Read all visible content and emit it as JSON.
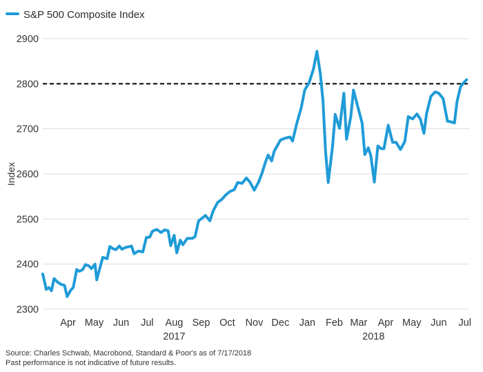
{
  "chart_data": {
    "type": "line",
    "title": "",
    "legend": {
      "position": "top-left",
      "entries": [
        {
          "name": "S&P 500 Composite Index",
          "color": "#1f9bd7"
        }
      ]
    },
    "ylabel": "Index",
    "xlabel": "",
    "ylim": [
      2300,
      2900
    ],
    "yticks": [
      2300,
      2400,
      2500,
      2600,
      2700,
      2800,
      2900
    ],
    "grid": "horizontal",
    "xlim": [
      "2017-03-17",
      "2018-07-20"
    ],
    "month_ticks": [
      {
        "label": "Apr",
        "date": "2017-04-15"
      },
      {
        "label": "May",
        "date": "2017-05-15"
      },
      {
        "label": "Jun",
        "date": "2017-06-15"
      },
      {
        "label": "Jul",
        "date": "2017-07-15"
      },
      {
        "label": "Aug",
        "date": "2017-08-15"
      },
      {
        "label": "Sep",
        "date": "2017-09-15"
      },
      {
        "label": "Oct",
        "date": "2017-10-15"
      },
      {
        "label": "Nov",
        "date": "2017-11-15"
      },
      {
        "label": "Dec",
        "date": "2017-12-15"
      },
      {
        "label": "Jan",
        "date": "2018-01-15"
      },
      {
        "label": "Feb",
        "date": "2018-02-15"
      },
      {
        "label": "Mar",
        "date": "2018-03-15"
      },
      {
        "label": "Apr",
        "date": "2018-04-15"
      },
      {
        "label": "May",
        "date": "2018-05-15"
      },
      {
        "label": "Jun",
        "date": "2018-06-15"
      },
      {
        "label": "Jul",
        "date": "2018-07-15"
      }
    ],
    "year_labels": [
      {
        "label": "2017",
        "date": "2017-08-15"
      },
      {
        "label": "2018",
        "date": "2018-04-01"
      }
    ],
    "reference_line": {
      "y": 2800,
      "style": "dashed",
      "color": "#000000"
    },
    "series": [
      {
        "name": "S&P 500 Composite Index",
        "color": "#1f9bd7",
        "x": [
          "2017-03-17",
          "2017-03-21",
          "2017-03-24",
          "2017-03-27",
          "2017-03-30",
          "2017-04-03",
          "2017-04-07",
          "2017-04-11",
          "2017-04-14",
          "2017-04-18",
          "2017-04-21",
          "2017-04-25",
          "2017-04-28",
          "2017-05-02",
          "2017-05-05",
          "2017-05-09",
          "2017-05-12",
          "2017-05-16",
          "2017-05-18",
          "2017-05-22",
          "2017-05-25",
          "2017-05-30",
          "2017-06-02",
          "2017-06-06",
          "2017-06-09",
          "2017-06-13",
          "2017-06-16",
          "2017-06-20",
          "2017-06-23",
          "2017-06-27",
          "2017-06-30",
          "2017-07-05",
          "2017-07-10",
          "2017-07-14",
          "2017-07-18",
          "2017-07-21",
          "2017-07-26",
          "2017-07-31",
          "2017-08-04",
          "2017-08-08",
          "2017-08-11",
          "2017-08-15",
          "2017-08-18",
          "2017-08-22",
          "2017-08-25",
          "2017-08-30",
          "2017-09-05",
          "2017-09-08",
          "2017-09-12",
          "2017-09-15",
          "2017-09-20",
          "2017-09-25",
          "2017-09-29",
          "2017-10-04",
          "2017-10-09",
          "2017-10-13",
          "2017-10-18",
          "2017-10-23",
          "2017-10-27",
          "2017-11-01",
          "2017-11-06",
          "2017-11-10",
          "2017-11-15",
          "2017-11-20",
          "2017-11-24",
          "2017-11-28",
          "2017-12-01",
          "2017-12-05",
          "2017-12-08",
          "2017-12-12",
          "2017-12-15",
          "2017-12-20",
          "2017-12-26",
          "2017-12-29",
          "2018-01-03",
          "2018-01-08",
          "2018-01-12",
          "2018-01-17",
          "2018-01-22",
          "2018-01-26",
          "2018-01-30",
          "2018-02-02",
          "2018-02-05",
          "2018-02-08",
          "2018-02-13",
          "2018-02-16",
          "2018-02-21",
          "2018-02-26",
          "2018-03-01",
          "2018-03-06",
          "2018-03-09",
          "2018-03-14",
          "2018-03-19",
          "2018-03-22",
          "2018-03-26",
          "2018-03-29",
          "2018-04-02",
          "2018-04-06",
          "2018-04-10",
          "2018-04-13",
          "2018-04-18",
          "2018-04-23",
          "2018-04-27",
          "2018-05-02",
          "2018-05-07",
          "2018-05-11",
          "2018-05-16",
          "2018-05-21",
          "2018-05-25",
          "2018-05-29",
          "2018-06-01",
          "2018-06-06",
          "2018-06-11",
          "2018-06-15",
          "2018-06-20",
          "2018-06-25",
          "2018-06-28",
          "2018-07-03",
          "2018-07-06",
          "2018-07-10",
          "2018-07-13",
          "2018-07-17"
        ],
        "values": [
          2378,
          2344,
          2348,
          2341,
          2368,
          2360,
          2355,
          2353,
          2328,
          2342,
          2348,
          2388,
          2384,
          2388,
          2399,
          2396,
          2390,
          2400,
          2365,
          2394,
          2415,
          2412,
          2439,
          2434,
          2432,
          2440,
          2433,
          2437,
          2438,
          2440,
          2423,
          2429,
          2427,
          2459,
          2460,
          2473,
          2477,
          2470,
          2476,
          2474,
          2441,
          2464,
          2425,
          2453,
          2443,
          2457,
          2457,
          2461,
          2496,
          2500,
          2508,
          2496,
          2519,
          2537,
          2544,
          2553,
          2561,
          2565,
          2581,
          2579,
          2591,
          2582,
          2564,
          2582,
          2602,
          2627,
          2642,
          2629,
          2651,
          2664,
          2675,
          2679,
          2682,
          2673,
          2713,
          2747,
          2786,
          2802,
          2832,
          2872,
          2822,
          2762,
          2648,
          2581,
          2662,
          2732,
          2701,
          2779,
          2677,
          2728,
          2786,
          2749,
          2712,
          2643,
          2658,
          2640,
          2582,
          2662,
          2656,
          2656,
          2708,
          2670,
          2670,
          2654,
          2672,
          2727,
          2722,
          2733,
          2721,
          2690,
          2734,
          2772,
          2782,
          2779,
          2767,
          2717,
          2716,
          2713,
          2760,
          2793,
          2801,
          2809
        ]
      }
    ]
  },
  "footer": {
    "source": "Source: Charles Schwab, Macrobond, Standard & Poor's as of 7/17/2018",
    "disclaimer": "Past performance is not indicative of future results."
  }
}
